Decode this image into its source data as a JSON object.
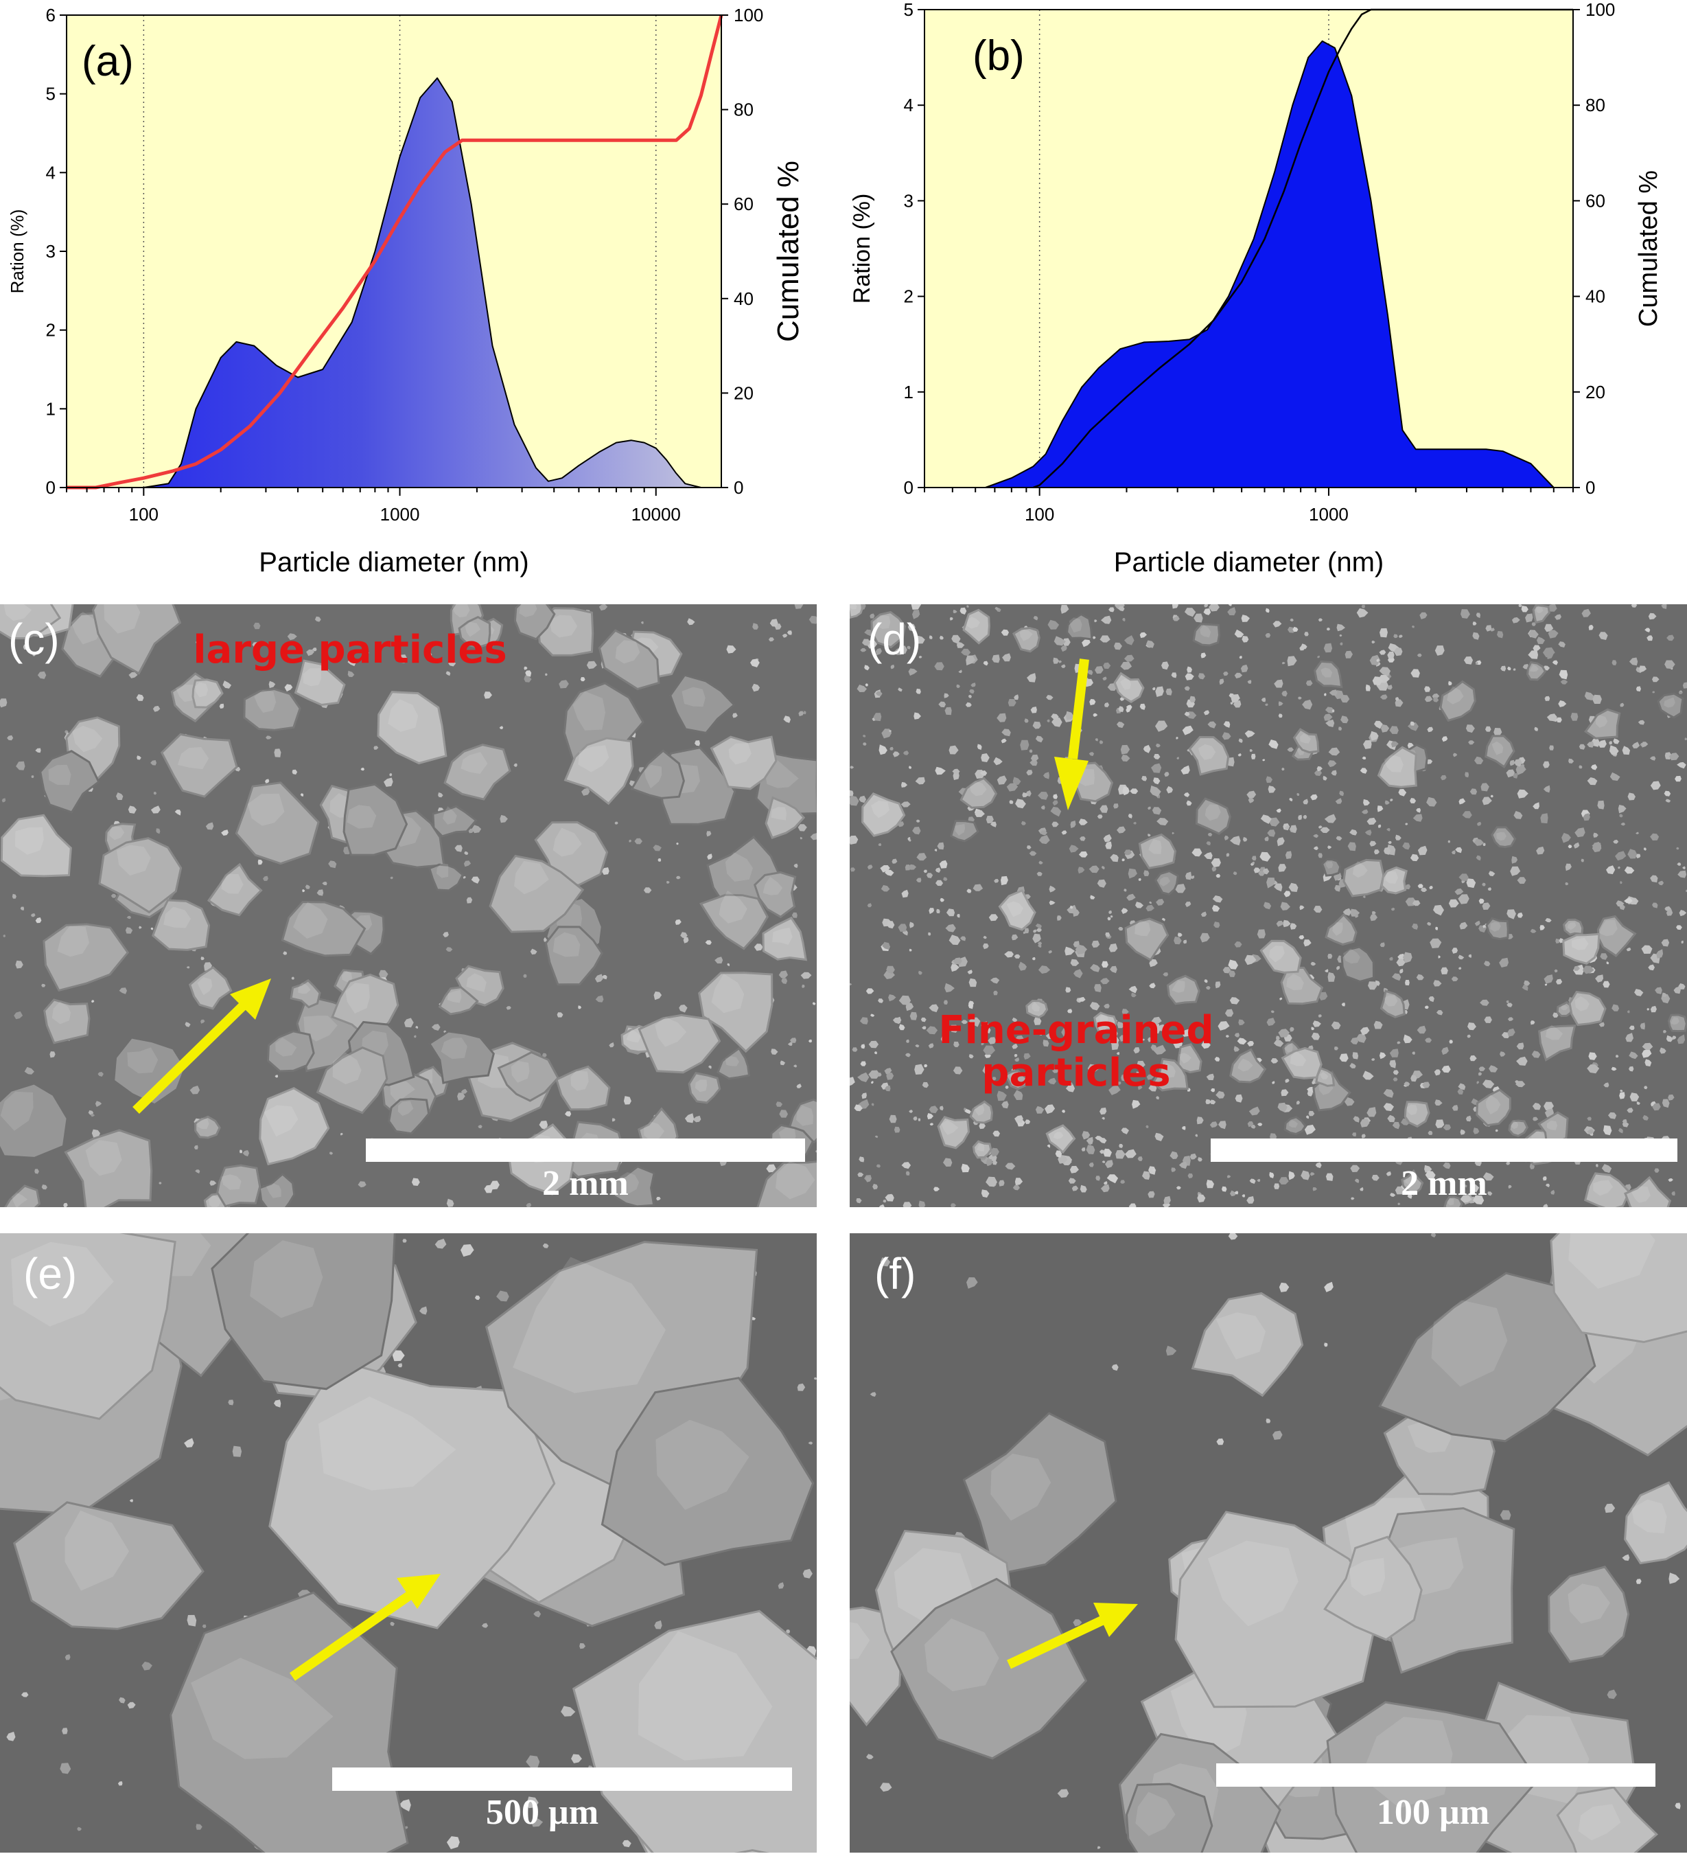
{
  "chart_data": [
    {
      "panel": "(a)",
      "type": "area",
      "xlabel": "Particle diameter (nm)",
      "ylabel": "Ration (%)",
      "y2label": "Cumulated %",
      "xscale": "log",
      "xlim": [
        50,
        18000
      ],
      "ylim": [
        0,
        6
      ],
      "y2lim": [
        0,
        100
      ],
      "x_ticks": [
        "100",
        "1000",
        "10000"
      ],
      "y_ticks": [
        "0",
        "1",
        "2",
        "3",
        "4",
        "5",
        "6"
      ],
      "y2_ticks": [
        "0",
        "20",
        "40",
        "60",
        "80",
        "100"
      ],
      "grid": "vertical dotted at 100, 1000, 10000",
      "background": "#ffffc8",
      "series": [
        {
          "role": "distribution",
          "color": "#2a2ee6",
          "x": [
            50,
            100,
            125,
            140,
            160,
            200,
            230,
            270,
            330,
            400,
            500,
            650,
            800,
            1000,
            1200,
            1400,
            1600,
            1900,
            2300,
            2800,
            3400,
            3800,
            4300,
            5000,
            6000,
            7000,
            8000,
            9000,
            10000,
            11000,
            12000,
            13000,
            15000,
            18000
          ],
          "y": [
            0,
            0,
            0.05,
            0.3,
            1.0,
            1.65,
            1.85,
            1.8,
            1.55,
            1.4,
            1.5,
            2.1,
            3.0,
            4.2,
            4.95,
            5.2,
            4.9,
            3.6,
            1.8,
            0.8,
            0.25,
            0.08,
            0.12,
            0.28,
            0.45,
            0.57,
            0.6,
            0.57,
            0.5,
            0.35,
            0.18,
            0.05,
            0,
            0
          ]
        },
        {
          "role": "cumulative",
          "color": "#ef3b3b",
          "x": [
            50,
            65,
            80,
            100,
            130,
            160,
            200,
            260,
            340,
            450,
            600,
            800,
            1000,
            1200,
            1500,
            1750,
            2500,
            5000,
            10000,
            12000,
            13500,
            15000,
            16500,
            18000
          ],
          "y": [
            0,
            0,
            1,
            2,
            3.5,
            5,
            8,
            13,
            20,
            29,
            38,
            48,
            57,
            64,
            71,
            73.5,
            73.5,
            73.5,
            73.5,
            73.5,
            76,
            83,
            92,
            100
          ]
        }
      ]
    },
    {
      "panel": "(b)",
      "type": "area",
      "xlabel": "Particle diameter (nm)",
      "ylabel": "Ration (%)",
      "y2label": "Cumulated %",
      "xscale": "log",
      "xlim": [
        40,
        7000
      ],
      "ylim": [
        0,
        5
      ],
      "y2lim": [
        0,
        100
      ],
      "x_ticks": [
        "100",
        "1000"
      ],
      "y_ticks": [
        "0",
        "1",
        "2",
        "3",
        "4",
        "5"
      ],
      "y2_ticks": [
        "0",
        "20",
        "40",
        "60",
        "80",
        "100"
      ],
      "grid": "vertical dotted at 100, 1000",
      "background": "#ffffc8",
      "series": [
        {
          "role": "distribution",
          "color": "#0a16f0",
          "x": [
            65,
            80,
            95,
            105,
            120,
            140,
            160,
            190,
            230,
            280,
            330,
            380,
            450,
            550,
            650,
            750,
            850,
            950,
            1050,
            1200,
            1400,
            1600,
            1800,
            2000,
            2500,
            3000,
            3500,
            4000,
            5000,
            6000
          ],
          "y": [
            0,
            0.1,
            0.22,
            0.35,
            0.7,
            1.05,
            1.25,
            1.45,
            1.52,
            1.53,
            1.55,
            1.65,
            2.0,
            2.6,
            3.3,
            4.0,
            4.5,
            4.67,
            4.6,
            4.1,
            3.0,
            1.8,
            0.6,
            0.4,
            0.4,
            0.4,
            0.4,
            0.38,
            0.25,
            0
          ]
        },
        {
          "role": "cumulative",
          "color": "#000000",
          "x": [
            95,
            100,
            120,
            150,
            200,
            260,
            330,
            400,
            500,
            600,
            700,
            800,
            900,
            1000,
            1100,
            1200,
            1300,
            1400,
            1500,
            7000
          ],
          "y": [
            0,
            0.5,
            5,
            12,
            19,
            25,
            30,
            35,
            43,
            52,
            62,
            72,
            80,
            87,
            92,
            96,
            99,
            100,
            100,
            100
          ]
        }
      ]
    }
  ],
  "labels": {
    "a": "(a)",
    "b": "(b)",
    "c": "(c)",
    "d": "(d)",
    "e": "(e)",
    "f": "(f)"
  },
  "annotations": {
    "c_note": "large particles",
    "d_note_line1": "Fine-grained",
    "d_note_line2": "particles"
  },
  "scales": {
    "c": "2 mm",
    "d": "2 mm",
    "e": "500 µm",
    "f": "100 µm"
  },
  "colors": {
    "arrow": "#f4f000",
    "note": "#e41414",
    "sem_bg_c": "#6e6e6e",
    "sem_bg_f": "#666666"
  }
}
